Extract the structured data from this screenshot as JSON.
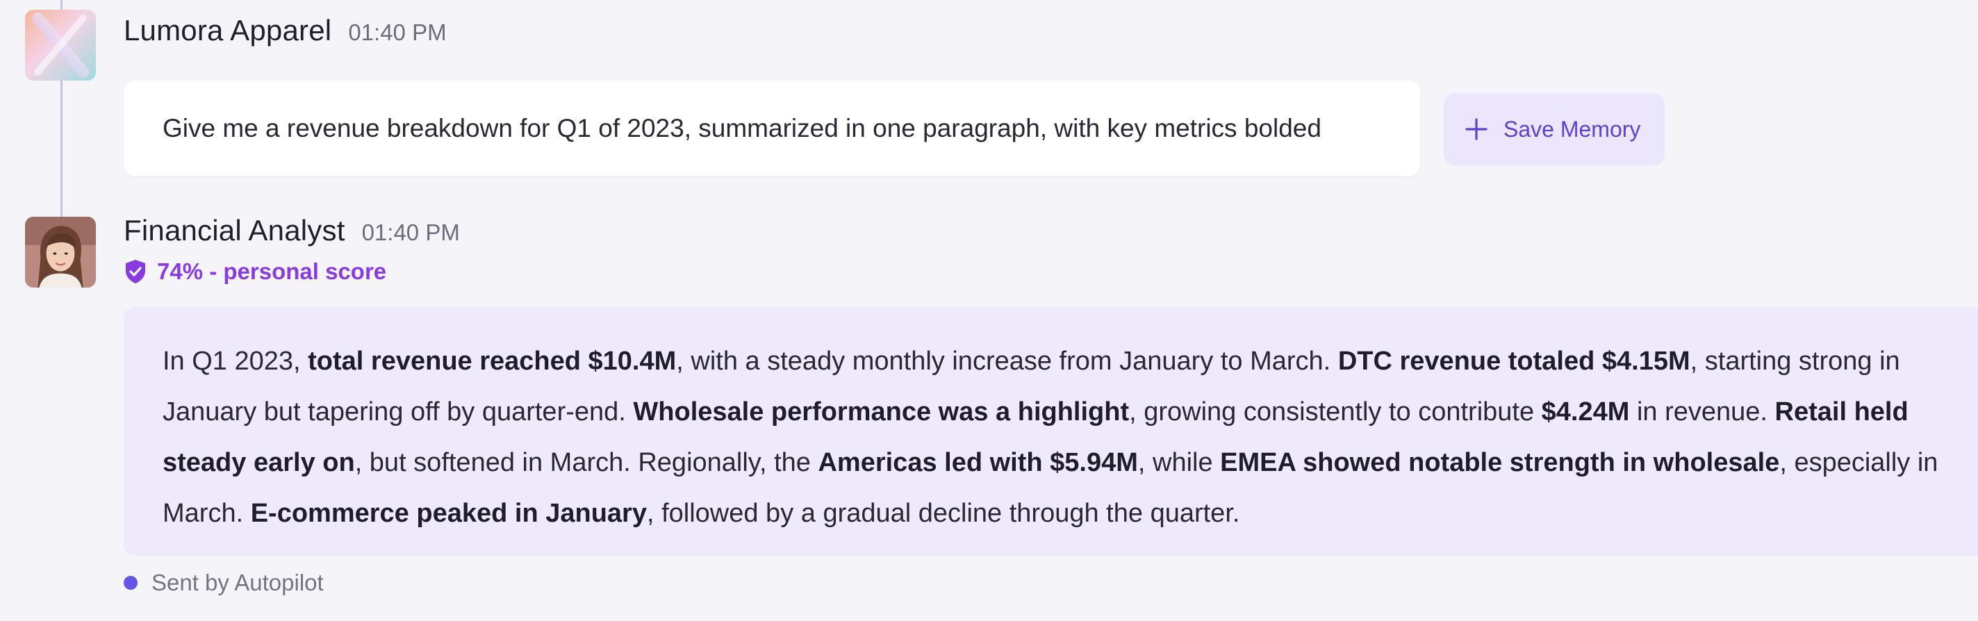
{
  "messages": {
    "user": {
      "sender": "Lumora Apparel",
      "time": "01:40 PM",
      "text": "Give me a revenue breakdown for Q1 of 2023, summarized in one paragraph, with key metrics bolded",
      "action_label": "Save Memory",
      "action_icon": "plus-icon"
    },
    "reply": {
      "sender": "Financial Analyst",
      "time": "01:40 PM",
      "score_label": "74% - personal score",
      "score_icon": "shield-check-icon",
      "segments": [
        {
          "text": "In Q1 2023, ",
          "bold": false
        },
        {
          "text": "total revenue reached $10.4M",
          "bold": true
        },
        {
          "text": ", with a steady monthly increase from January to March. ",
          "bold": false
        },
        {
          "text": "DTC revenue totaled $4.15M",
          "bold": true
        },
        {
          "text": ", starting strong in January but tapering off by quarter-end. ",
          "bold": false
        },
        {
          "text": "Wholesale performance was a highlight",
          "bold": true
        },
        {
          "text": ", growing consistently to contribute ",
          "bold": false
        },
        {
          "text": "$4.24M",
          "bold": true
        },
        {
          "text": " in revenue. ",
          "bold": false
        },
        {
          "text": "Retail held steady early on",
          "bold": true
        },
        {
          "text": ", but softened in March. Regionally, the ",
          "bold": false
        },
        {
          "text": "Americas led with $5.94M",
          "bold": true
        },
        {
          "text": ", while ",
          "bold": false
        },
        {
          "text": "EMEA showed notable strength in wholesale",
          "bold": true
        },
        {
          "text": ", especially in March. ",
          "bold": false
        },
        {
          "text": "E-commerce peaked in January",
          "bold": true
        },
        {
          "text": ", followed by a gradual decline through the quarter.",
          "bold": false
        }
      ],
      "footer": "Sent by Autopilot"
    }
  },
  "colors": {
    "accent": "#6555e6",
    "score": "#8a3be0",
    "reply_bg": "#eeeafb",
    "page_bg": "#f5f4f8"
  }
}
